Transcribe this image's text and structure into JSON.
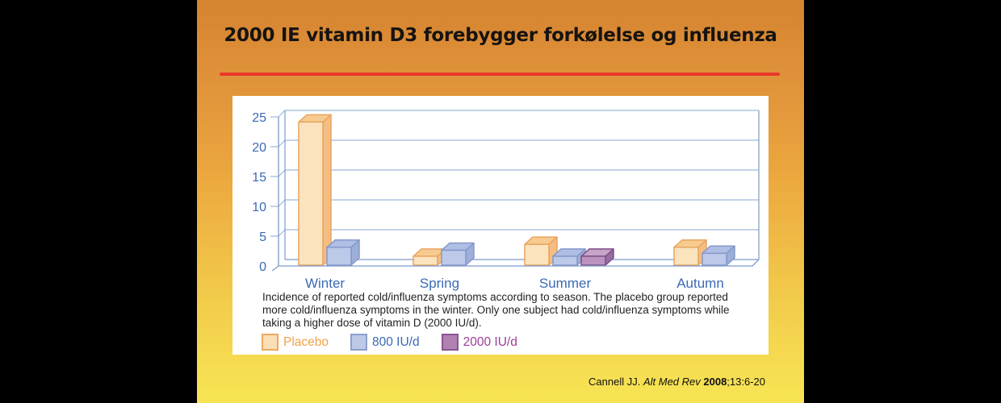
{
  "slide": {
    "title": "2000 IE vitamin D3 forebygger forkølelse og influenza",
    "accent_color": "#E8382A",
    "background_top": "#D5842F",
    "background_bottom": "#F7E554",
    "citation": {
      "author": "Cannell JJ. ",
      "journal": "Alt Med Rev ",
      "year": "2008",
      "pages": ";13:6-20"
    }
  },
  "figure": {
    "caption": "Incidence of reported cold/influenza symptoms according to season. The placebo group reported more cold/influenza symptoms in the winter. Only one subject had cold/influenza symptoms while taking a higher dose of vitamin D (2000 IU/d).",
    "legend": [
      {
        "label": "Placebo",
        "fill": "#FADFB6",
        "border": "#EFA85E",
        "text_color": "#F0A148"
      },
      {
        "label": "800 IU/d",
        "fill": "#BCC8E6",
        "border": "#8BA0CE",
        "text_color": "#3A6AB4"
      },
      {
        "label": "2000 IU/d",
        "fill": "#B082B2",
        "border": "#8A5492",
        "text_color": "#9B3D97"
      }
    ]
  },
  "chart_data": {
    "type": "bar",
    "subtype": "3d-grouped",
    "title": "",
    "xlabel": "",
    "ylabel": "",
    "categories": [
      "Winter",
      "Spring",
      "Summer",
      "Autumn"
    ],
    "series": [
      {
        "name": "Placebo",
        "values": [
          24,
          1.5,
          3.5,
          3
        ],
        "colors": {
          "front": "#FBE3BE",
          "top": "#F7CB90",
          "side": "#F4BE82",
          "stroke": "#E9A45F"
        }
      },
      {
        "name": "800 IU/d",
        "values": [
          3,
          2.5,
          1.5,
          2
        ],
        "colors": {
          "front": "#BDC9E8",
          "top": "#AFBFE3",
          "side": "#9DAFD9",
          "stroke": "#8498CB"
        }
      },
      {
        "name": "2000 IU/d",
        "values": [
          null,
          null,
          1.5,
          null
        ],
        "colors": {
          "front": "#BD94BF",
          "top": "#C7A3C8",
          "side": "#976CA0",
          "stroke": "#7C5088"
        }
      }
    ],
    "yticks": [
      0,
      5,
      10,
      15,
      20,
      25
    ],
    "ylim": [
      0,
      25
    ],
    "grid": true,
    "legend_position": "bottom",
    "axis_color": "#7D9BC9",
    "grid_color": "#9FB9DC",
    "tick_label_color": "#3A6AB4"
  }
}
